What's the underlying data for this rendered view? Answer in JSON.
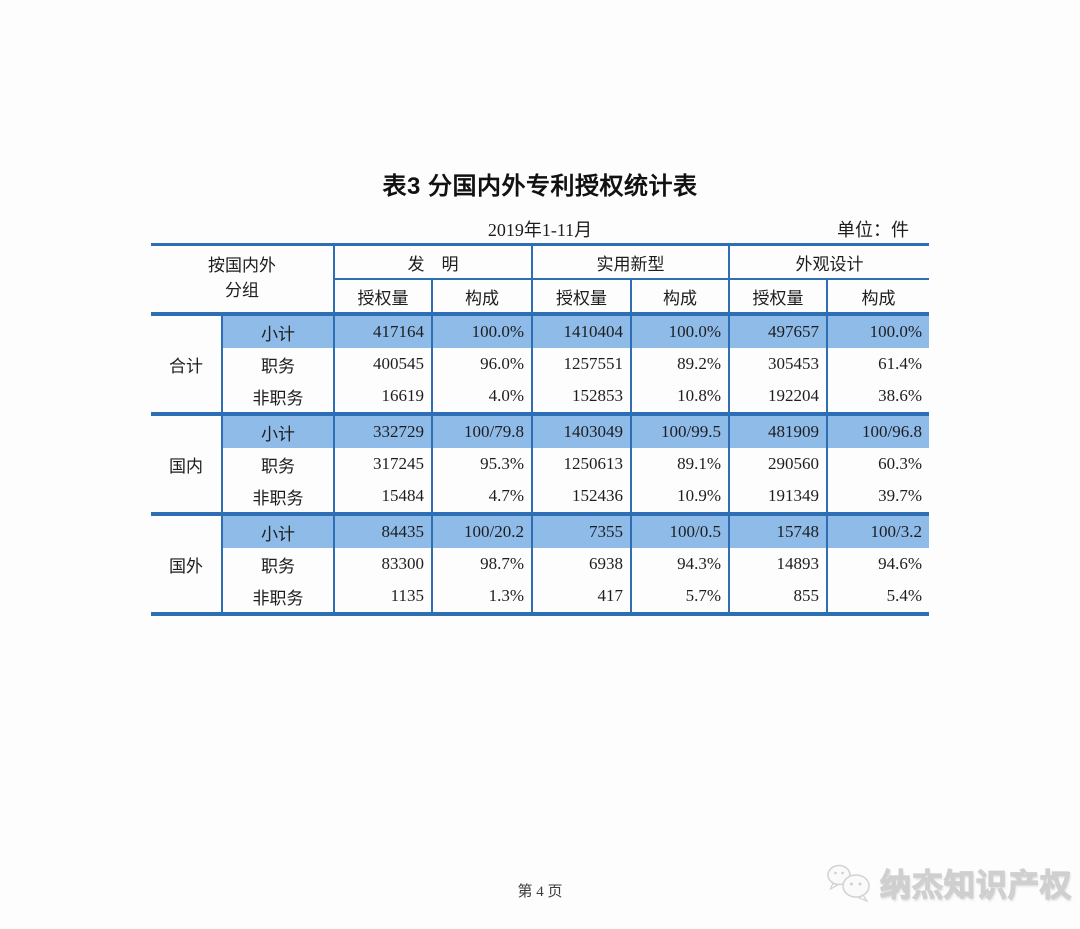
{
  "document": {
    "title": "表3 分国内外专利授权统计表",
    "period": "2019年1-11月",
    "unit": "单位：件",
    "footer_page": "第 4 页",
    "watermark_text": "纳杰知识产权"
  },
  "table": {
    "row_header_line1": "按国内外",
    "row_header_line2": "分组",
    "column_groups": [
      {
        "label": "发　明"
      },
      {
        "label": "实用新型"
      },
      {
        "label": "外观设计"
      }
    ],
    "sub_headers": [
      "授权量",
      "构成"
    ],
    "groups": [
      {
        "name": "合计",
        "rows": [
          {
            "type": "小计",
            "values": [
              "417164",
              "100.0%",
              "1410404",
              "100.0%",
              "497657",
              "100.0%"
            ]
          },
          {
            "type": "职务",
            "values": [
              "400545",
              "96.0%",
              "1257551",
              "89.2%",
              "305453",
              "61.4%"
            ]
          },
          {
            "type": "非职务",
            "values": [
              "16619",
              "4.0%",
              "152853",
              "10.8%",
              "192204",
              "38.6%"
            ]
          }
        ]
      },
      {
        "name": "国内",
        "rows": [
          {
            "type": "小计",
            "values": [
              "332729",
              "100/79.8",
              "1403049",
              "100/99.5",
              "481909",
              "100/96.8"
            ]
          },
          {
            "type": "职务",
            "values": [
              "317245",
              "95.3%",
              "1250613",
              "89.1%",
              "290560",
              "60.3%"
            ]
          },
          {
            "type": "非职务",
            "values": [
              "15484",
              "4.7%",
              "152436",
              "10.9%",
              "191349",
              "39.7%"
            ]
          }
        ]
      },
      {
        "name": "国外",
        "rows": [
          {
            "type": "小计",
            "values": [
              "84435",
              "100/20.2",
              "7355",
              "100/0.5",
              "15748",
              "100/3.2"
            ]
          },
          {
            "type": "职务",
            "values": [
              "83300",
              "98.7%",
              "6938",
              "94.3%",
              "14893",
              "94.6%"
            ]
          },
          {
            "type": "非职务",
            "values": [
              "1135",
              "1.3%",
              "417",
              "5.7%",
              "855",
              "5.4%"
            ]
          }
        ]
      }
    ]
  },
  "colors": {
    "table_line_blue": "#2e6eb5",
    "subtotal_highlight_blue": "#8fbbe8"
  }
}
